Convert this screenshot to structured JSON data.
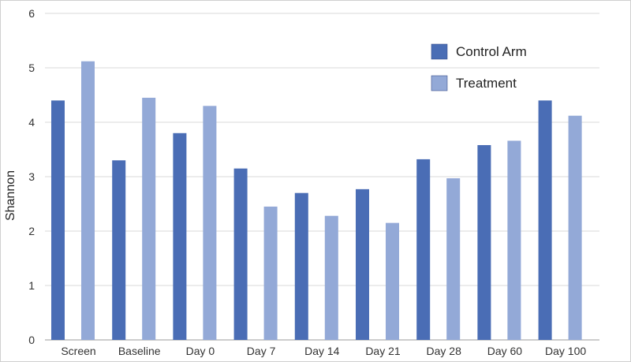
{
  "chart_data": {
    "type": "bar",
    "title": "",
    "xlabel": "",
    "ylabel": "Shannon",
    "ylim": [
      0,
      6
    ],
    "yticks": [
      0,
      1,
      2,
      3,
      4,
      5,
      6
    ],
    "grid": true,
    "legend_position": "top-right",
    "categories": [
      "Screen",
      "Baseline",
      "Day 0",
      "Day 7",
      "Day 14",
      "Day 21",
      "Day 28",
      "Day 60",
      "Day 100"
    ],
    "series": [
      {
        "name": "Control Arm",
        "color": "#4a6db5",
        "values": [
          4.4,
          3.3,
          3.8,
          3.15,
          2.7,
          2.77,
          3.32,
          3.58,
          4.4
        ]
      },
      {
        "name": "Treatment",
        "color": "#93a9d7",
        "values": [
          5.12,
          4.45,
          4.3,
          2.45,
          2.28,
          2.15,
          2.97,
          3.66,
          4.12
        ]
      }
    ]
  }
}
